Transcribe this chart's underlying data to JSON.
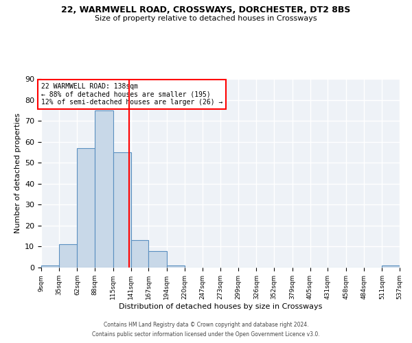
{
  "title": "22, WARMWELL ROAD, CROSSWAYS, DORCHESTER, DT2 8BS",
  "subtitle": "Size of property relative to detached houses in Crossways",
  "xlabel": "Distribution of detached houses by size in Crossways",
  "ylabel": "Number of detached properties",
  "bar_color": "#c8d8e8",
  "bar_edge_color": "#5a8fc0",
  "bg_color": "#eef2f7",
  "grid_color": "white",
  "bin_edges": [
    9,
    35,
    62,
    88,
    115,
    141,
    167,
    194,
    220,
    247,
    273,
    299,
    326,
    352,
    379,
    405,
    431,
    458,
    484,
    511,
    537
  ],
  "bin_counts": [
    1,
    11,
    57,
    75,
    55,
    13,
    8,
    1,
    0,
    0,
    0,
    0,
    0,
    0,
    0,
    0,
    0,
    0,
    0,
    1
  ],
  "property_size": 138,
  "vline_color": "red",
  "annotation_text": "22 WARMWELL ROAD: 138sqm\n← 88% of detached houses are smaller (195)\n12% of semi-detached houses are larger (26) →",
  "annotation_box_color": "white",
  "annotation_box_edge": "red",
  "ylim": [
    0,
    90
  ],
  "yticks": [
    0,
    10,
    20,
    30,
    40,
    50,
    60,
    70,
    80,
    90
  ],
  "footer_line1": "Contains HM Land Registry data © Crown copyright and database right 2024.",
  "footer_line2": "Contains public sector information licensed under the Open Government Licence v3.0.",
  "tick_labels": [
    "9sqm",
    "35sqm",
    "62sqm",
    "88sqm",
    "115sqm",
    "141sqm",
    "167sqm",
    "194sqm",
    "220sqm",
    "247sqm",
    "273sqm",
    "299sqm",
    "326sqm",
    "352sqm",
    "379sqm",
    "405sqm",
    "431sqm",
    "458sqm",
    "484sqm",
    "511sqm",
    "537sqm"
  ]
}
